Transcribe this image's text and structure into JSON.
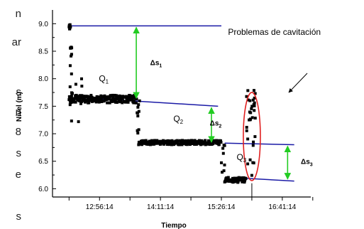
{
  "page_text_fragments": [
    "n",
    "ar",
    "s",
    "n",
    "8",
    "s",
    "e",
    "s"
  ],
  "colors": {
    "data": "#000000",
    "level_lines": "#1a1aa6",
    "delta_arrows": "#22cc22",
    "cavitation_ellipse": "#e02020"
  },
  "chart_data": {
    "type": "scatter",
    "xlabel": "Tiempo",
    "ylabel": "Nivel (m)",
    "xlim": [
      0,
      78
    ],
    "ylim": [
      5.85,
      9.25
    ],
    "x_tick_labels": [
      "12:56:14",
      "14:11:14",
      "15:26:14",
      "16:41:14"
    ],
    "y_ticks": [
      6.0,
      6.5,
      7.0,
      7.5,
      8.0,
      8.5,
      9.0
    ],
    "y_tick_labels": [
      "6.0",
      "6.5",
      "7.0",
      "7.5",
      "8.0",
      "8.5",
      "9.0"
    ],
    "level_lines": [
      {
        "x": [
          5,
          51
        ],
        "y": [
          8.96,
          8.96
        ]
      },
      {
        "x": [
          10,
          50
        ],
        "y": [
          7.65,
          7.5
        ]
      },
      {
        "x": [
          52,
          73
        ],
        "y": [
          6.83,
          6.8
        ]
      },
      {
        "x": [
          55,
          73
        ],
        "y": [
          6.2,
          6.14
        ]
      }
    ],
    "segments": [
      {
        "name": "Q1",
        "x_range": [
          5,
          25.5
        ],
        "level": 7.63,
        "noise": 0.07
      },
      {
        "name": "Q2",
        "x_range": [
          26,
          51
        ],
        "level": 6.84,
        "noise": 0.04
      },
      {
        "name": "Q3",
        "x_range": [
          52,
          58.5
        ],
        "level": 6.16,
        "noise": 0.05
      }
    ],
    "annotations": [
      {
        "label": "Q",
        "sub": "1",
        "x": 14,
        "y": 7.95
      },
      {
        "label": "Q",
        "sub": "2",
        "x": 36.5,
        "y": 7.22
      },
      {
        "label": "Q",
        "sub": "3",
        "x": 55.6,
        "y": 6.52
      },
      {
        "label": "Δs",
        "sub": "1",
        "x": 29.5,
        "y": 8.25
      },
      {
        "label": "Δs",
        "sub": "2",
        "x": 47.5,
        "y": 7.15
      },
      {
        "label": "Δs",
        "sub": "3",
        "x": 75,
        "y": 6.45
      },
      {
        "label": "Problemas de cavitación",
        "x": 53,
        "y": 8.8
      }
    ],
    "delta_arrows": [
      {
        "name": "Δs1",
        "x": 25.3,
        "y": [
          8.96,
          7.62
        ]
      },
      {
        "name": "Δs2",
        "x": 48,
        "y": [
          7.5,
          6.82
        ]
      },
      {
        "name": "Δs3",
        "x": 71,
        "y": [
          6.8,
          6.15
        ]
      }
    ],
    "grid": false,
    "legend": "none"
  }
}
